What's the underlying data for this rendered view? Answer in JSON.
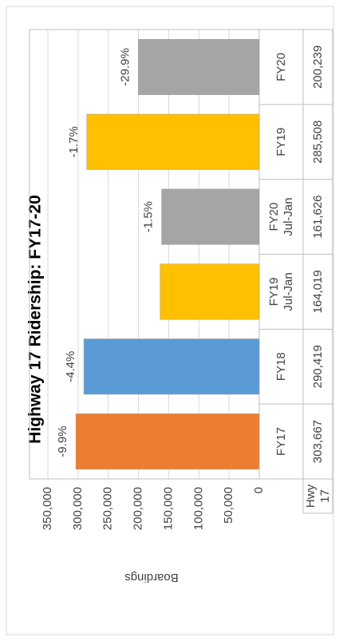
{
  "chart_data": {
    "type": "bar",
    "title": "Highway 17 Ridership: FY17-20",
    "y_label": "Boardings",
    "series_name": "Hwy 17",
    "categories": [
      "FY17",
      "FY18",
      "FY19 Jul-Jan",
      "FY20 Jul-Jan",
      "FY19",
      "FY20"
    ],
    "values": [
      303667,
      290419,
      164019,
      161626,
      285508,
      200239
    ],
    "value_labels": [
      "303,667",
      "290,419",
      "164,019",
      "161,626",
      "285,508",
      "200,239"
    ],
    "colors": [
      "#ED7D31",
      "#5B9BD5",
      "#FFC000",
      "#A5A5A5",
      "#FFC000",
      "#A5A5A5"
    ],
    "annotations": [
      "-9.9%",
      "-4.4%",
      null,
      "-1.5%",
      "-1.7%",
      "-29.9%"
    ],
    "ylim": [
      0,
      350000
    ],
    "yticks": [
      {
        "value": 0,
        "label": "0"
      },
      {
        "value": 50000,
        "label": "50,000"
      },
      {
        "value": 100000,
        "label": "100,000"
      },
      {
        "value": 150000,
        "label": "150,000"
      },
      {
        "value": 200000,
        "label": "200,000"
      },
      {
        "value": 250000,
        "label": "250,000"
      },
      {
        "value": 300000,
        "label": "300,000"
      },
      {
        "value": 350000,
        "label": "350,000"
      }
    ],
    "grid": true
  }
}
